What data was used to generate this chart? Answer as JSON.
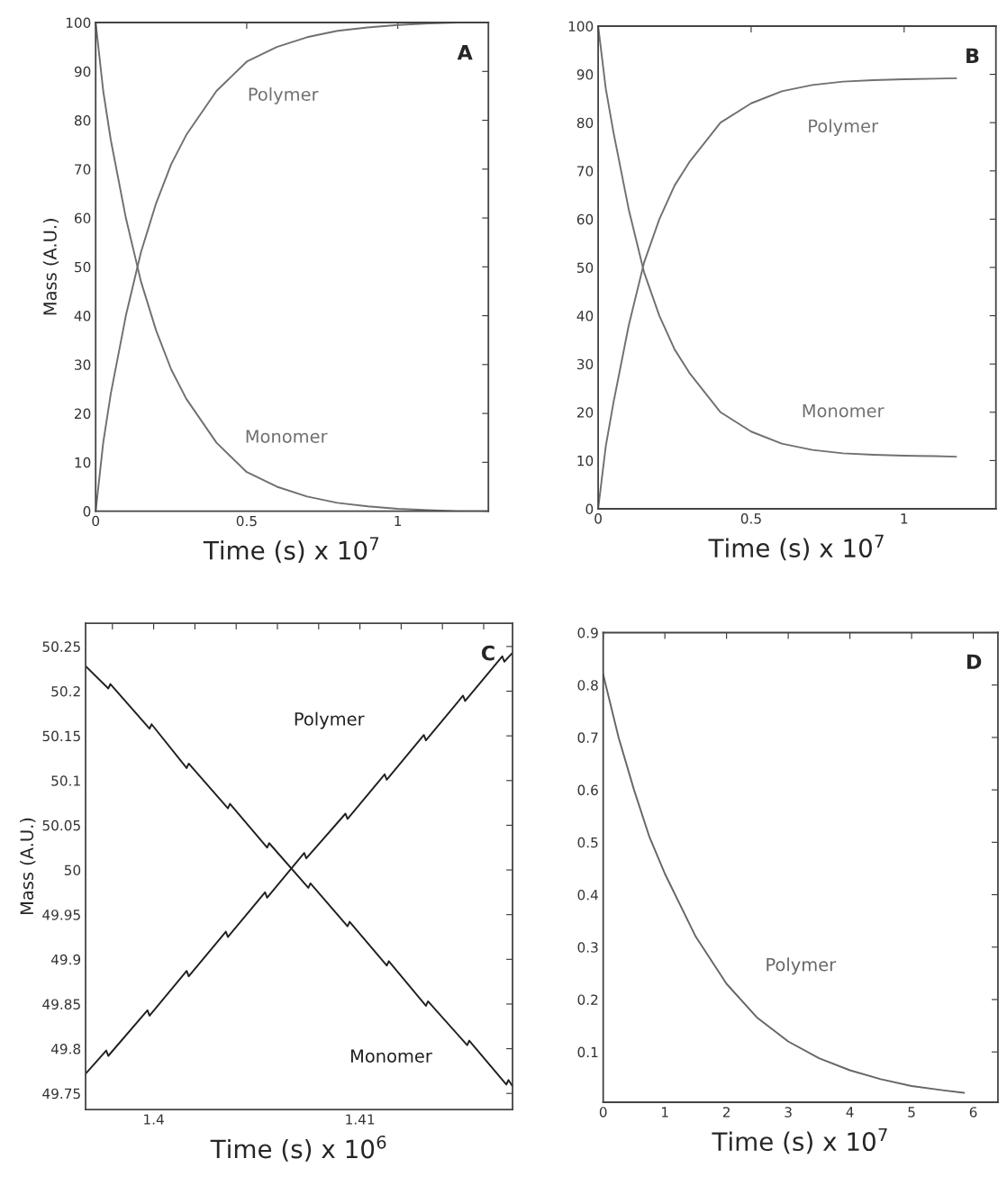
{
  "chart_data": [
    {
      "type": "line",
      "xlabel": "Time (s) x 10$^{7}$",
      "ylabel": "Mass (A.U.)",
      "xlim": [
        0,
        1.3
      ],
      "ylim": [
        0,
        100
      ],
      "xticks": [
        0,
        0.5,
        1
      ],
      "yticks": [
        0,
        10,
        20,
        30,
        40,
        50,
        60,
        70,
        80,
        90,
        100
      ],
      "annotations": [
        "A"
      ],
      "series": [
        {
          "name": "Polymer",
          "color": "#707070",
          "x": [
            0,
            0.025,
            0.05,
            0.1,
            0.15,
            0.2,
            0.25,
            0.3,
            0.4,
            0.5,
            0.6,
            0.7,
            0.8,
            0.9,
            1.0,
            1.1,
            1.2,
            1.3
          ],
          "values": [
            0,
            14,
            24,
            40,
            53,
            63,
            71,
            77,
            86,
            92,
            95,
            97,
            98.3,
            99,
            99.5,
            99.8,
            100,
            100
          ]
        },
        {
          "name": "Monomer",
          "color": "#707070",
          "x": [
            0,
            0.025,
            0.05,
            0.1,
            0.15,
            0.2,
            0.25,
            0.3,
            0.4,
            0.5,
            0.6,
            0.7,
            0.8,
            0.9,
            1.0,
            1.1,
            1.2,
            1.3
          ],
          "values": [
            100,
            86,
            76,
            60,
            47,
            37,
            29,
            23,
            14,
            8,
            5,
            3,
            1.7,
            1,
            0.5,
            0.2,
            0,
            0
          ]
        }
      ]
    },
    {
      "type": "line",
      "xlabel": "Time (s) x 10$^{7}$",
      "xlim": [
        0,
        1.3
      ],
      "ylim": [
        0,
        100
      ],
      "xticks": [
        0,
        0.5,
        1
      ],
      "yticks": [
        0,
        10,
        20,
        30,
        40,
        50,
        60,
        70,
        80,
        90,
        100
      ],
      "annotations": [
        "B"
      ],
      "series": [
        {
          "name": "Polymer",
          "color": "#707070",
          "x": [
            0,
            0.025,
            0.05,
            0.1,
            0.15,
            0.2,
            0.25,
            0.3,
            0.4,
            0.5,
            0.6,
            0.7,
            0.8,
            0.9,
            1.0,
            1.1,
            1.17
          ],
          "values": [
            0,
            13,
            22,
            38,
            51,
            60,
            67,
            72,
            80,
            84,
            86.5,
            87.8,
            88.5,
            88.8,
            89,
            89.1,
            89.2
          ]
        },
        {
          "name": "Monomer",
          "color": "#707070",
          "x": [
            0,
            0.025,
            0.05,
            0.1,
            0.15,
            0.2,
            0.25,
            0.3,
            0.4,
            0.5,
            0.6,
            0.7,
            0.8,
            0.9,
            1.0,
            1.1,
            1.17
          ],
          "values": [
            100,
            87,
            78,
            62,
            49,
            40,
            33,
            28,
            20,
            16,
            13.5,
            12.2,
            11.5,
            11.2,
            11,
            10.9,
            10.8
          ]
        }
      ]
    },
    {
      "type": "line",
      "xlabel": "Time (s) x 10$^{6}$",
      "ylabel": "Mass (A.U.)",
      "xlim": [
        1.3967,
        1.4174
      ],
      "ylim": [
        49.732,
        50.276
      ],
      "xticks": [
        {
          "value": 1.398,
          "label": null
        },
        1.4,
        {
          "value": 1.402,
          "label": null
        },
        {
          "value": 1.404,
          "label": null
        },
        {
          "value": 1.406,
          "label": null
        },
        {
          "value": 1.408,
          "label": null
        },
        1.41,
        {
          "value": 1.412,
          "label": null
        },
        {
          "value": 1.414,
          "label": null
        },
        {
          "value": 1.416,
          "label": null
        }
      ],
      "yticks": [
        49.75,
        49.8,
        49.85,
        49.9,
        49.95,
        50,
        50.05,
        50.1,
        50.15,
        50.2,
        50.25
      ],
      "annotations": [
        "C"
      ],
      "series": [
        {
          "name": "Polymer",
          "color": "#202020",
          "x": [
            1.3967,
            1.3977,
            1.3978,
            1.3997,
            1.3998,
            1.4016,
            1.4017,
            1.4035,
            1.4036,
            1.4054,
            1.4055,
            1.4073,
            1.4074,
            1.4093,
            1.4094,
            1.4112,
            1.4113,
            1.4131,
            1.4132,
            1.415,
            1.4151,
            1.4169,
            1.417,
            1.4174
          ],
          "values": [
            49.772,
            49.798,
            49.792,
            49.843,
            49.837,
            49.887,
            49.881,
            49.931,
            49.925,
            49.975,
            49.969,
            50.019,
            50.013,
            50.063,
            50.057,
            50.107,
            50.101,
            50.151,
            50.145,
            50.195,
            50.189,
            50.239,
            50.233,
            50.243
          ]
        },
        {
          "name": "Monomer",
          "color": "#202020",
          "x": [
            1.3967,
            1.3978,
            1.3979,
            1.3998,
            1.3999,
            1.4016,
            1.4017,
            1.4036,
            1.4037,
            1.4055,
            1.4056,
            1.4075,
            1.4076,
            1.4094,
            1.4095,
            1.4113,
            1.4114,
            1.4132,
            1.4133,
            1.4152,
            1.4153,
            1.4171,
            1.4172,
            1.4174
          ],
          "values": [
            50.228,
            50.203,
            50.208,
            50.158,
            50.163,
            50.114,
            50.119,
            50.069,
            50.074,
            50.025,
            50.03,
            49.98,
            49.985,
            49.937,
            49.942,
            49.893,
            49.898,
            49.848,
            49.853,
            49.804,
            49.809,
            49.76,
            49.765,
            49.758
          ]
        }
      ]
    },
    {
      "type": "line",
      "xlabel": "Time (s) x 10$^{7}$",
      "xlim": [
        0,
        6.4
      ],
      "ylim": [
        0.004,
        0.9
      ],
      "xticks": [
        0,
        1,
        2,
        3,
        4,
        5,
        6
      ],
      "yticks": [
        0.1,
        0.2,
        0.3,
        0.4,
        0.5,
        0.6,
        0.7,
        0.8,
        0.9
      ],
      "annotations": [
        "D"
      ],
      "series": [
        {
          "name": "Polymer",
          "color": "#666666",
          "x": [
            0,
            0.25,
            0.5,
            0.75,
            1,
            1.5,
            2,
            2.5,
            3,
            3.5,
            4,
            4.5,
            5,
            5.5,
            5.85
          ],
          "values": [
            0.82,
            0.7,
            0.6,
            0.51,
            0.44,
            0.32,
            0.23,
            0.165,
            0.12,
            0.088,
            0.065,
            0.048,
            0.035,
            0.027,
            0.022
          ]
        }
      ]
    }
  ]
}
